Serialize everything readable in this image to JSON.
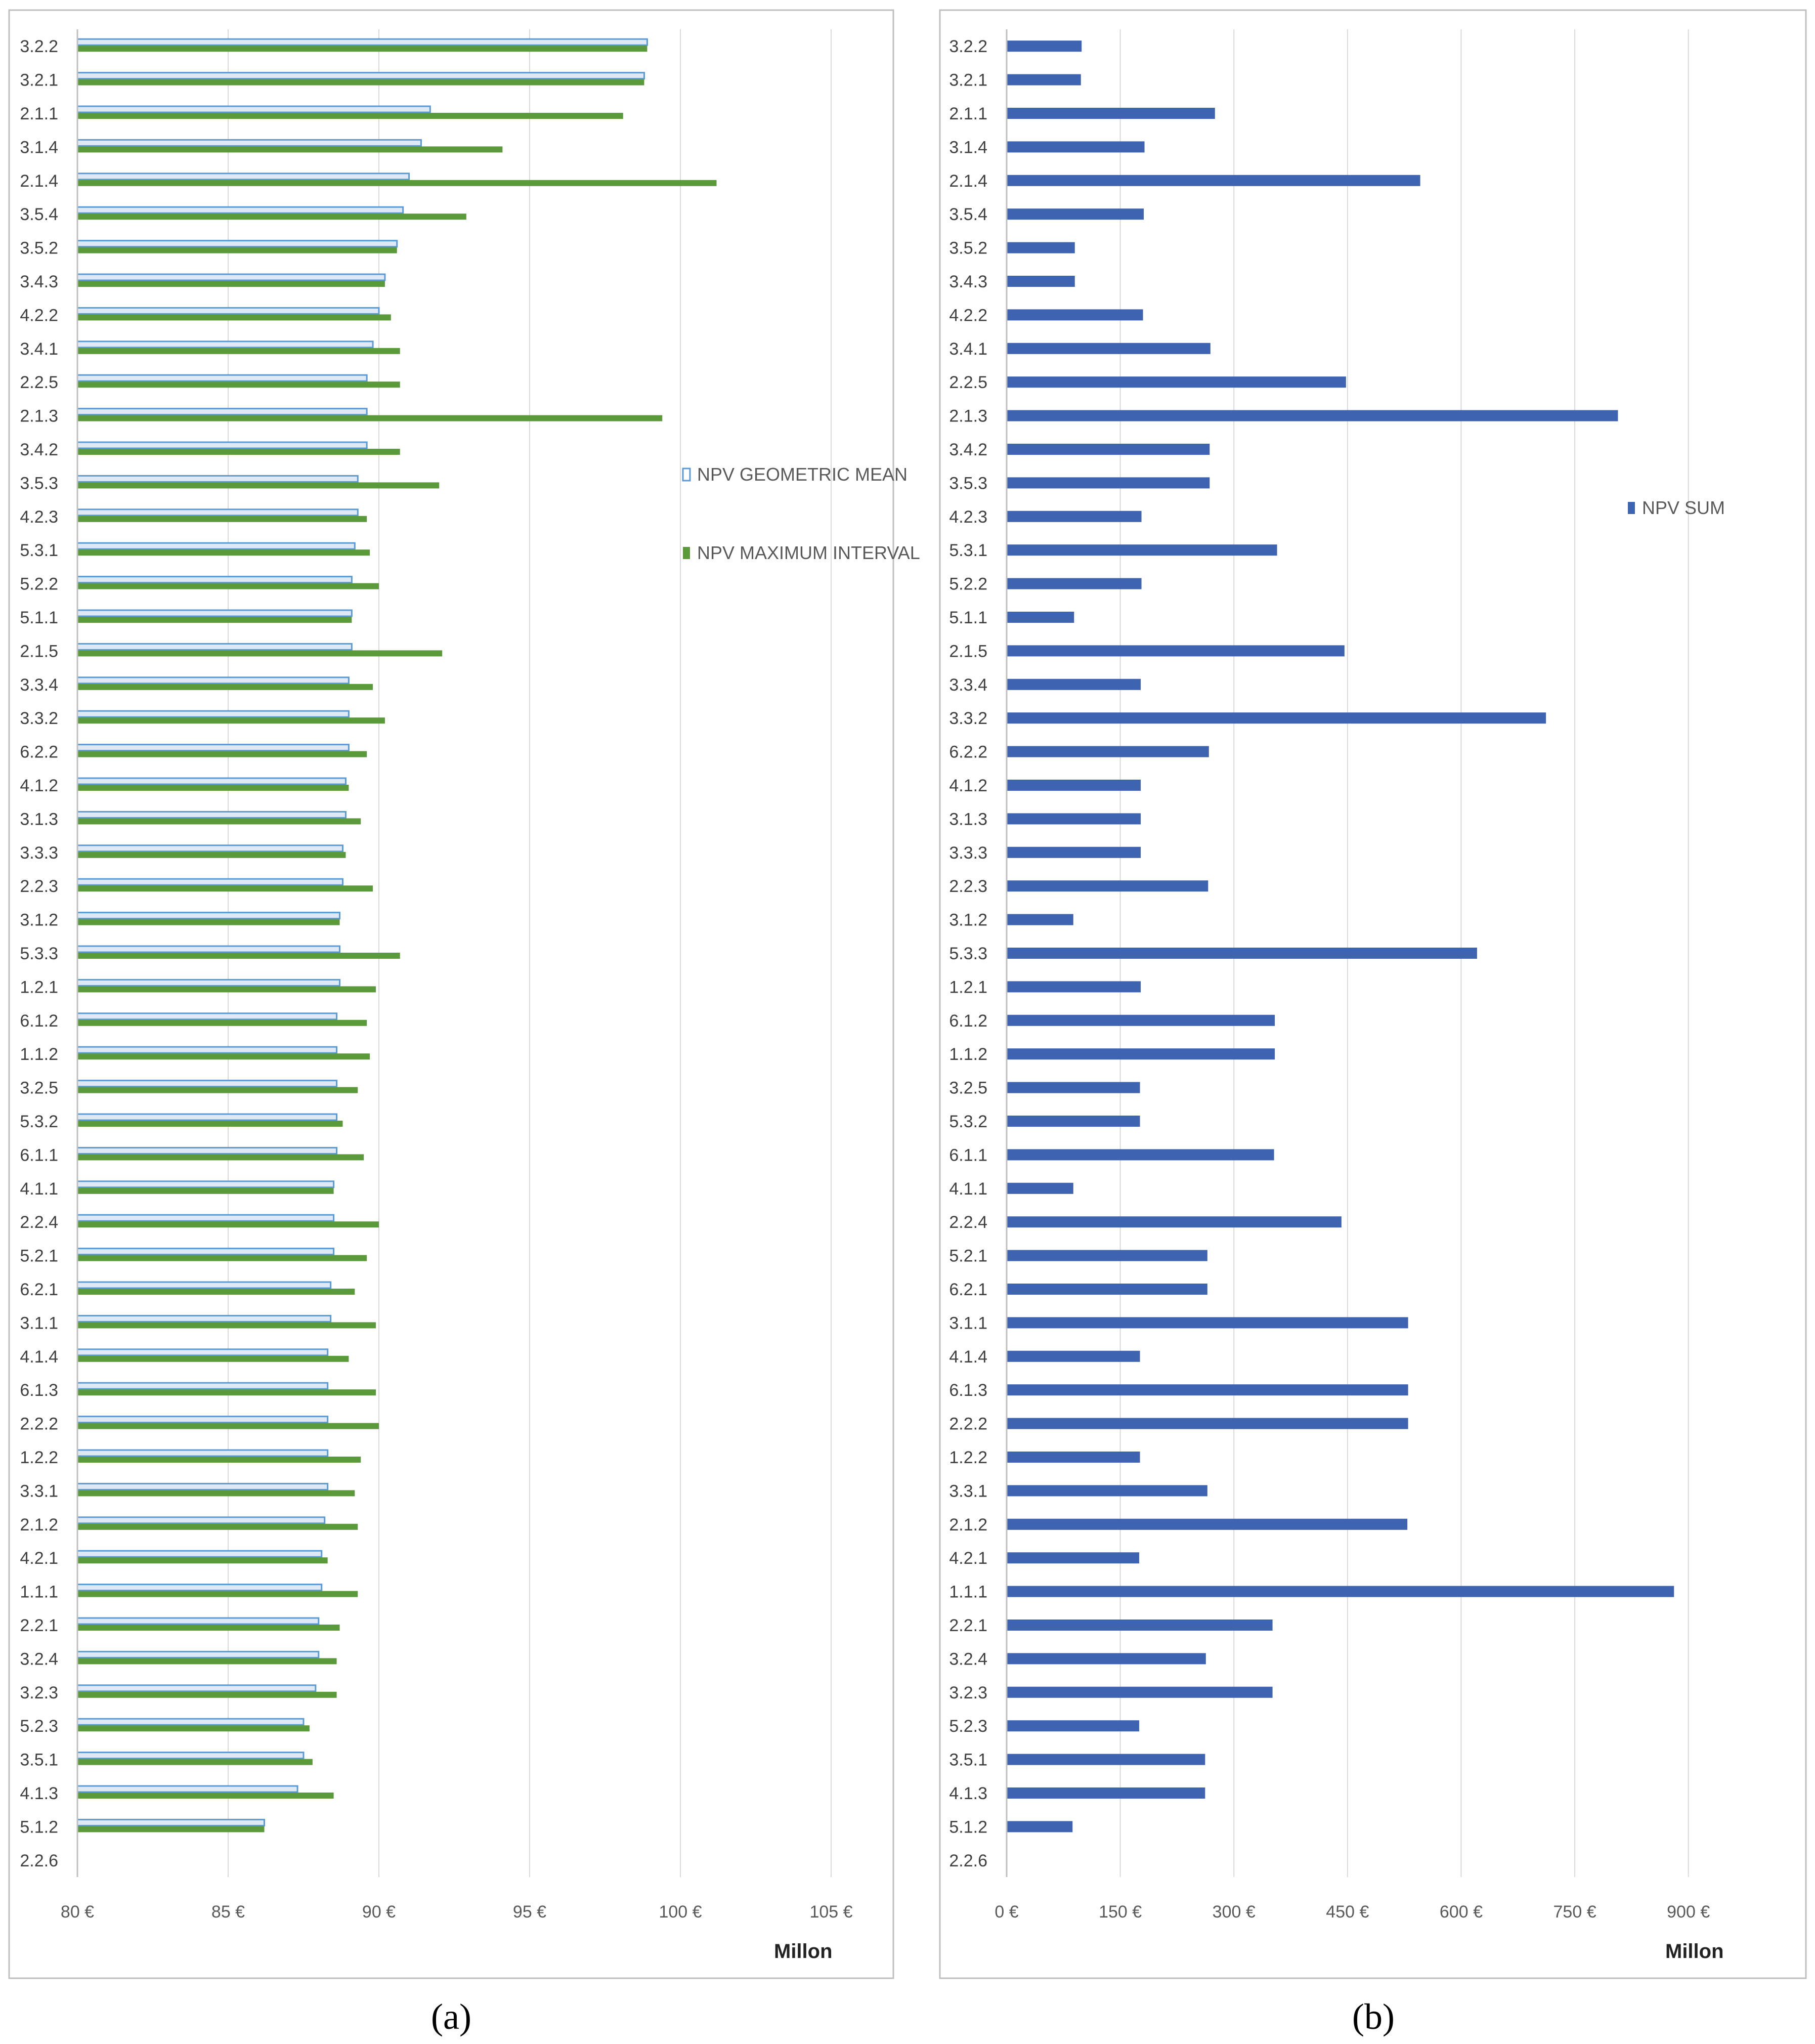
{
  "chart_data": [
    {
      "type": "bar",
      "orientation": "horizontal",
      "panel_label": "(a)",
      "categories": [
        "3.2.2",
        "3.2.1",
        "2.1.1",
        "3.1.4",
        "2.1.4",
        "3.5.4",
        "3.5.2",
        "3.4.3",
        "4.2.2",
        "3.4.1",
        "2.2.5",
        "2.1.3",
        "3.4.2",
        "3.5.3",
        "4.2.3",
        "5.3.1",
        "5.2.2",
        "5.1.1",
        "2.1.5",
        "3.3.4",
        "3.3.2",
        "6.2.2",
        "4.1.2",
        "3.1.3",
        "3.3.3",
        "2.2.3",
        "3.1.2",
        "5.3.3",
        "1.2.1",
        "6.1.2",
        "1.1.2",
        "3.2.5",
        "5.3.2",
        "6.1.1",
        "4.1.1",
        "2.2.4",
        "5.2.1",
        "6.2.1",
        "3.1.1",
        "4.1.4",
        "6.1.3",
        "2.2.2",
        "1.2.2",
        "3.3.1",
        "2.1.2",
        "4.2.1",
        "1.1.1",
        "2.2.1",
        "3.2.4",
        "3.2.3",
        "5.2.3",
        "3.5.1",
        "4.1.3",
        "5.1.2",
        "2.2.6"
      ],
      "series": [
        {
          "name": "NPV GEOMETRIC MEAN",
          "color": "#5b9bd5",
          "values": [
            98.9,
            98.8,
            91.7,
            91.4,
            91.0,
            90.8,
            90.6,
            90.2,
            90.0,
            89.8,
            89.6,
            89.6,
            89.6,
            89.3,
            89.3,
            89.2,
            89.1,
            89.1,
            89.1,
            89.0,
            89.0,
            89.0,
            88.9,
            88.9,
            88.8,
            88.8,
            88.7,
            88.7,
            88.7,
            88.6,
            88.6,
            88.6,
            88.6,
            88.6,
            88.5,
            88.5,
            88.5,
            88.4,
            88.4,
            88.3,
            88.3,
            88.3,
            88.3,
            88.3,
            88.2,
            88.1,
            88.1,
            88.0,
            88.0,
            87.9,
            87.5,
            87.5,
            87.3,
            86.2,
            null
          ]
        },
        {
          "name": "NPV MAXIMUM INTERVAL",
          "color": "#5b9a3a",
          "values": [
            98.9,
            98.8,
            98.1,
            94.1,
            101.2,
            92.9,
            90.6,
            90.2,
            90.4,
            90.7,
            90.7,
            99.4,
            90.7,
            92.0,
            89.6,
            89.7,
            90.0,
            89.1,
            92.1,
            89.8,
            90.2,
            89.6,
            89.0,
            89.4,
            88.9,
            89.8,
            88.7,
            90.7,
            89.9,
            89.6,
            89.7,
            89.3,
            88.8,
            89.5,
            88.5,
            90.0,
            89.6,
            89.2,
            89.9,
            89.0,
            89.9,
            90.0,
            89.4,
            89.2,
            89.3,
            88.3,
            89.3,
            88.7,
            88.6,
            88.6,
            87.7,
            87.8,
            88.5,
            86.2,
            null
          ]
        }
      ],
      "xlim": [
        80,
        105
      ],
      "xticks": [
        {
          "value": 80,
          "label": "80 €"
        },
        {
          "value": 85,
          "label": "85 €"
        },
        {
          "value": 90,
          "label": "90 €"
        },
        {
          "value": 95,
          "label": "95 €"
        },
        {
          "value": 100,
          "label": "100 €"
        },
        {
          "value": 105,
          "label": "105 €"
        }
      ],
      "xlabel": "Millon",
      "grid": true,
      "legend_position": "right"
    },
    {
      "type": "bar",
      "orientation": "horizontal",
      "panel_label": "(b)",
      "categories": [
        "3.2.2",
        "3.2.1",
        "2.1.1",
        "3.1.4",
        "2.1.4",
        "3.5.4",
        "3.5.2",
        "3.4.3",
        "4.2.2",
        "3.4.1",
        "2.2.5",
        "2.1.3",
        "3.4.2",
        "3.5.3",
        "4.2.3",
        "5.3.1",
        "5.2.2",
        "5.1.1",
        "2.1.5",
        "3.3.4",
        "3.3.2",
        "6.2.2",
        "4.1.2",
        "3.1.3",
        "3.3.3",
        "2.2.3",
        "3.1.2",
        "5.3.3",
        "1.2.1",
        "6.1.2",
        "1.1.2",
        "3.2.5",
        "5.3.2",
        "6.1.1",
        "4.1.1",
        "2.2.4",
        "5.2.1",
        "6.2.1",
        "3.1.1",
        "4.1.4",
        "6.1.3",
        "2.2.2",
        "1.2.2",
        "3.3.1",
        "2.1.2",
        "4.2.1",
        "1.1.1",
        "2.2.1",
        "3.2.4",
        "3.2.3",
        "5.2.3",
        "3.5.1",
        "4.1.3",
        "5.1.2",
        "2.2.6"
      ],
      "series": [
        {
          "name": "NPV SUM",
          "color": "#3e63b0",
          "values": [
            99,
            98,
            275,
            182,
            546,
            181,
            90,
            90,
            180,
            269,
            448,
            807,
            268,
            268,
            178,
            357,
            178,
            89,
            446,
            177,
            712,
            267,
            177,
            177,
            177,
            266,
            88,
            621,
            177,
            354,
            354,
            176,
            176,
            353,
            88,
            442,
            265,
            265,
            530,
            176,
            530,
            530,
            176,
            265,
            529,
            175,
            881,
            351,
            263,
            351,
            175,
            262,
            262,
            87,
            null
          ]
        }
      ],
      "xlim": [
        0,
        975
      ],
      "xticks": [
        {
          "value": 0,
          "label": "0 €"
        },
        {
          "value": 150,
          "label": "150 €"
        },
        {
          "value": 300,
          "label": "300 €"
        },
        {
          "value": 450,
          "label": "450 €"
        },
        {
          "value": 600,
          "label": "600 €"
        },
        {
          "value": 750,
          "label": "750 €"
        },
        {
          "value": 900,
          "label": "900 €"
        }
      ],
      "xlabel": "Millon",
      "grid": true,
      "legend_position": "right"
    }
  ]
}
